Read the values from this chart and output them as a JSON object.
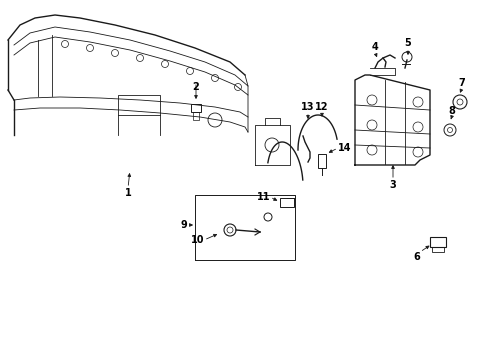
{
  "bg_color": "#ffffff",
  "line_color": "#1a1a1a",
  "label_color": "#000000",
  "fig_width": 4.9,
  "fig_height": 3.6,
  "dpi": 100
}
